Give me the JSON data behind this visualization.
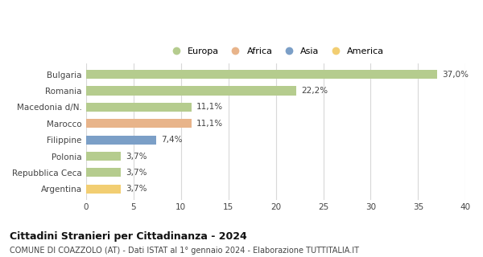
{
  "categories": [
    "Bulgaria",
    "Romania",
    "Macedonia d/N.",
    "Marocco",
    "Filippine",
    "Polonia",
    "Repubblica Ceca",
    "Argentina"
  ],
  "values": [
    37.0,
    22.2,
    11.1,
    11.1,
    7.4,
    3.7,
    3.7,
    3.7
  ],
  "labels": [
    "37,0%",
    "22,2%",
    "11,1%",
    "11,1%",
    "7,4%",
    "3,7%",
    "3,7%",
    "3,7%"
  ],
  "bar_colors": [
    "#b5cc8e",
    "#b5cc8e",
    "#b5cc8e",
    "#e8b48a",
    "#7b9fc7",
    "#b5cc8e",
    "#b5cc8e",
    "#f2ce72"
  ],
  "legend": [
    {
      "label": "Europa",
      "color": "#b5cc8e"
    },
    {
      "label": "Africa",
      "color": "#e8b48a"
    },
    {
      "label": "Asia",
      "color": "#7b9fc7"
    },
    {
      "label": "America",
      "color": "#f2ce72"
    }
  ],
  "xlim": [
    0,
    40
  ],
  "xticks": [
    0,
    5,
    10,
    15,
    20,
    25,
    30,
    35,
    40
  ],
  "title": "Cittadini Stranieri per Cittadinanza - 2024",
  "subtitle": "COMUNE DI COAZZOLO (AT) - Dati ISTAT al 1° gennaio 2024 - Elaborazione TUTTITALIA.IT",
  "title_fontsize": 9,
  "subtitle_fontsize": 7,
  "background_color": "#ffffff",
  "grid_color": "#d8d8d8",
  "bar_height": 0.55
}
